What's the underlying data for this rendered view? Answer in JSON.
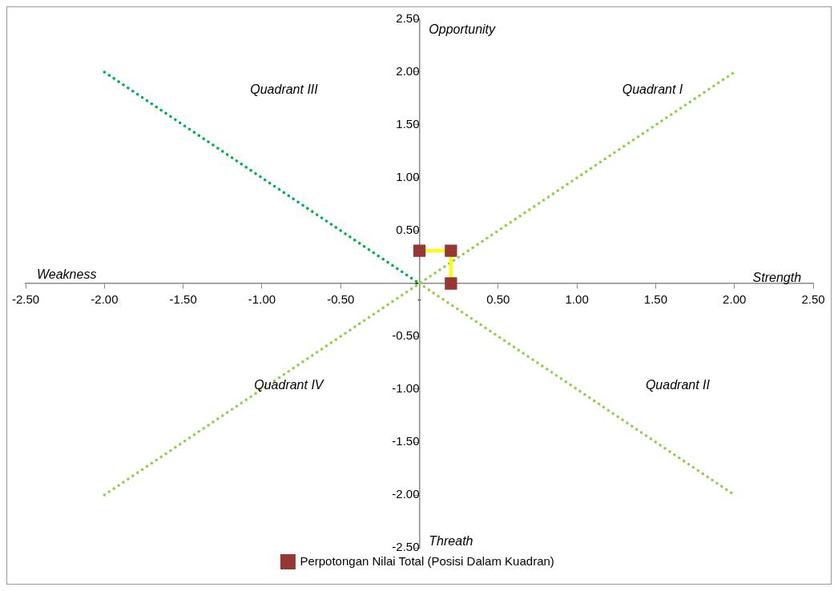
{
  "chart_data": {
    "type": "line",
    "xlim": [
      -2.5,
      2.5
    ],
    "ylim": [
      -2.5,
      2.5
    ],
    "xticks": [
      {
        "value": -2.5,
        "label": "-2.50"
      },
      {
        "value": -2,
        "label": "-2.00"
      },
      {
        "value": -1.5,
        "label": "-1.50"
      },
      {
        "value": -1,
        "label": "-1.00"
      },
      {
        "value": -0.5,
        "label": "-0.50"
      },
      {
        "value": 0,
        "label": "-"
      },
      {
        "value": 0.5,
        "label": "0.50"
      },
      {
        "value": 1,
        "label": "1.00"
      },
      {
        "value": 1.5,
        "label": "1.50"
      },
      {
        "value": 2,
        "label": "2.00"
      },
      {
        "value": 2.5,
        "label": "2.50"
      }
    ],
    "yticks": [
      {
        "value": -2.5,
        "label": "-2.50"
      },
      {
        "value": -2,
        "label": "-2.00"
      },
      {
        "value": -1.5,
        "label": "-1.50"
      },
      {
        "value": -1,
        "label": "-1.00"
      },
      {
        "value": -0.5,
        "label": "-0.50"
      },
      {
        "value": 0,
        "label": "-"
      },
      {
        "value": 0.5,
        "label": "0.50"
      },
      {
        "value": 1,
        "label": "1.00"
      },
      {
        "value": 1.5,
        "label": "1.50"
      },
      {
        "value": 2,
        "label": "2.00"
      },
      {
        "value": 2.5,
        "label": "2.50"
      }
    ],
    "grid": false,
    "legend": "bottom",
    "series": [
      {
        "x": [
          -2,
          0
        ],
        "values": [
          2,
          0
        ],
        "color": "#00b050",
        "marker": "none",
        "line_style": "dotted"
      },
      {
        "x": [
          -2,
          2
        ],
        "values": [
          -2,
          2
        ],
        "color": "#92d050",
        "marker": "none",
        "line_style": "dotted"
      },
      {
        "x": [
          0,
          2
        ],
        "values": [
          0,
          -2
        ],
        "color": "#92d050",
        "marker": "none",
        "line_style": "dotted"
      },
      {
        "name": "Perpotongan Nilai Total (Posisi Dalam Kuadran)",
        "x": [
          0,
          0.2,
          0.2
        ],
        "values": [
          0.31,
          0.31,
          0
        ],
        "color": "#ffff00",
        "colors": [
          "#953735",
          "#953735",
          "#953735"
        ],
        "marker": "square",
        "line_style": "solid"
      }
    ],
    "annotations": [
      "Weakness",
      "Strength",
      "Opportunity",
      "Threath",
      "Quadrant I",
      "Quadrant II",
      "Quadrant III",
      "Quadrant IV"
    ]
  }
}
